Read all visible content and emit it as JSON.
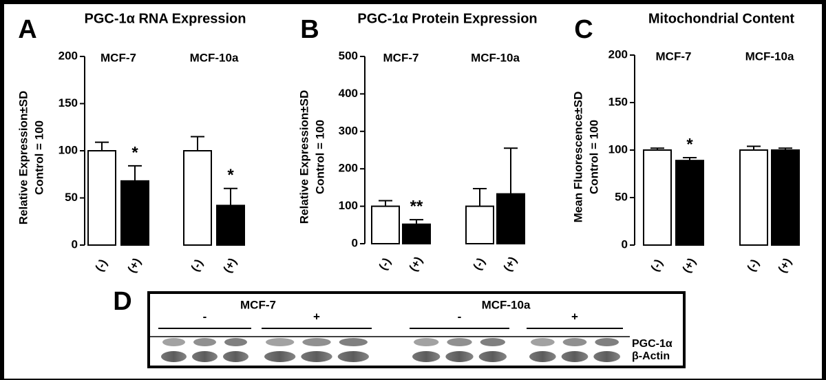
{
  "chart_data": [
    {
      "type": "bar",
      "panel": "A",
      "title": "PGC-1α RNA Expression",
      "ylabel": [
        "Relative Expression±SD",
        "Control = 100"
      ],
      "group_labels": [
        "MCF-7",
        "MCF-10a"
      ],
      "categories": [
        "(-)",
        "(+)",
        "(-)",
        "(+)"
      ],
      "values": [
        100,
        68,
        100,
        42
      ],
      "errors": [
        9,
        16,
        15,
        18
      ],
      "colors": [
        "#ffffff",
        "#000000",
        "#ffffff",
        "#000000"
      ],
      "annotations": [
        {
          "category": 1,
          "text": "*"
        },
        {
          "category": 3,
          "text": "*"
        }
      ],
      "ylim": [
        0,
        200
      ],
      "yticks": [
        0,
        50,
        100,
        150,
        200
      ]
    },
    {
      "type": "bar",
      "panel": "B",
      "title": "PGC-1α Protein Expression",
      "ylabel": [
        "Relative Expression±SD",
        "Control = 100"
      ],
      "group_labels": [
        "MCF-7",
        "MCF-10a"
      ],
      "categories": [
        "(-)",
        "(+)",
        "(-)",
        "(+)"
      ],
      "values": [
        100,
        52,
        100,
        133
      ],
      "errors": [
        15,
        12,
        47,
        122
      ],
      "colors": [
        "#ffffff",
        "#000000",
        "#ffffff",
        "#000000"
      ],
      "annotations": [
        {
          "category": 1,
          "text": "**"
        }
      ],
      "ylim": [
        0,
        500
      ],
      "yticks": [
        0,
        100,
        200,
        300,
        400,
        500
      ]
    },
    {
      "type": "bar",
      "panel": "C",
      "title": "Mitochondrial Content",
      "ylabel": [
        "Mean Fluorescence±SD",
        "Control = 100"
      ],
      "group_labels": [
        "MCF-7",
        "MCF-10a"
      ],
      "categories": [
        "(-)",
        "(+)",
        "(-)",
        "(+)"
      ],
      "values": [
        100,
        89,
        100,
        100
      ],
      "errors": [
        2,
        3,
        4,
        2
      ],
      "colors": [
        "#ffffff",
        "#000000",
        "#ffffff",
        "#000000"
      ],
      "annotations": [
        {
          "category": 1,
          "text": "*"
        }
      ],
      "ylim": [
        0,
        200
      ],
      "yticks": [
        0,
        50,
        100,
        150,
        200
      ]
    }
  ],
  "blot": {
    "panel": "D",
    "groups": [
      {
        "label": "MCF-7",
        "lanes": [
          "-",
          "+"
        ]
      },
      {
        "label": "MCF-10a",
        "lanes": [
          "-",
          "+"
        ]
      }
    ],
    "rows": [
      "PGC-1α",
      "β-Actin"
    ]
  }
}
